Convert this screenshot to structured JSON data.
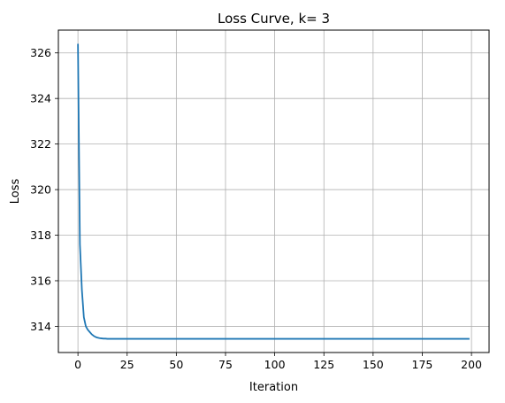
{
  "chart_data": {
    "type": "line",
    "title": "Loss Curve, k= 3",
    "xlabel": "Iteration",
    "ylabel": "Loss",
    "xlim": [
      -9.95,
      208.95
    ],
    "ylim": [
      312.85,
      327.0
    ],
    "xticks": [
      0,
      25,
      50,
      75,
      100,
      125,
      150,
      175,
      200
    ],
    "yticks": [
      314,
      316,
      318,
      320,
      322,
      324,
      326
    ],
    "grid": true,
    "line_color": "#1f77b4",
    "series": [
      {
        "x": [
          0,
          1,
          2,
          3,
          4,
          5,
          6,
          7,
          8,
          9,
          10,
          11,
          12,
          13,
          14,
          15,
          20,
          30,
          50,
          100,
          150,
          199
        ],
        "values": [
          326.4,
          317.6,
          315.6,
          314.4,
          314.0,
          313.85,
          313.75,
          313.65,
          313.58,
          313.53,
          313.5,
          313.48,
          313.47,
          313.46,
          313.46,
          313.45,
          313.45,
          313.45,
          313.45,
          313.45,
          313.45,
          313.45
        ]
      }
    ]
  }
}
